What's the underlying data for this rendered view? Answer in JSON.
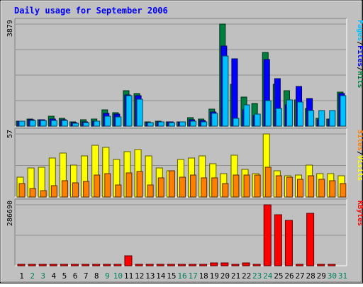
{
  "chart_data": {
    "type": "bar",
    "title": "Daily usage for September 2006",
    "days": [
      "1",
      "2",
      "3",
      "4",
      "5",
      "6",
      "7",
      "8",
      "9",
      "10",
      "11",
      "12",
      "13",
      "14",
      "15",
      "16",
      "17",
      "18",
      "19",
      "20",
      "21",
      "22",
      "23",
      "24",
      "25",
      "26",
      "27",
      "28",
      "29",
      "30",
      "31"
    ],
    "weekend_days": [
      "2",
      "3",
      "9",
      "10",
      "16",
      "17",
      "23",
      "24",
      "30",
      "31"
    ],
    "panels": [
      {
        "id": "hits",
        "ymax": 3879,
        "ymax_label": "3879",
        "legend": [
          {
            "label": "Pages",
            "color": "#00C0FF"
          },
          {
            "label": "Files",
            "color": "#0000FF"
          },
          {
            "label": "Hits",
            "color": "#008040"
          }
        ],
        "series": [
          {
            "name": "Hits",
            "color": "#008040",
            "values": [
              200,
              270,
              250,
              390,
              300,
              150,
              230,
              280,
              610,
              520,
              1360,
              1250,
              150,
              190,
              170,
              170,
              310,
              260,
              650,
              3879,
              1600,
              1110,
              850,
              2790,
              1580,
              1360,
              1000,
              680,
              300,
              280,
              1300
            ]
          },
          {
            "name": "Files",
            "color": "#0000FF",
            "values": [
              190,
              250,
              240,
              270,
              250,
              140,
              160,
              200,
              480,
              450,
              1180,
              1150,
              140,
              170,
              150,
              160,
              240,
              210,
              550,
              3050,
              2570,
              620,
              400,
              2520,
              1800,
              800,
              1500,
              1050,
              250,
              270,
              1250
            ]
          },
          {
            "name": "Pages",
            "color": "#00C0FF",
            "values": [
              180,
              210,
              220,
              210,
              210,
              120,
              130,
              180,
              390,
              350,
              1160,
              1030,
              130,
              150,
              140,
              150,
              180,
              170,
              480,
              2670,
              300,
              800,
              450,
              980,
              680,
              1000,
              920,
              600,
              600,
              600,
              1170
            ]
          }
        ]
      },
      {
        "id": "visits",
        "ymax": 57,
        "ymax_label": "57",
        "legend": [
          {
            "label": "Sites",
            "color": "#FF8000"
          },
          {
            "label": "Visits",
            "color": "#FFFF00"
          }
        ],
        "series": [
          {
            "name": "Visits",
            "color": "#FFFF00",
            "values": [
              18,
              26,
              27,
              35,
              40,
              29,
              37,
              47,
              45,
              34,
              41,
              43,
              37,
              26,
              24,
              34,
              35,
              37,
              30,
              21,
              38,
              25,
              21,
              57,
              24,
              19,
              20,
              29,
              21,
              21,
              19
            ]
          },
          {
            "name": "Sites",
            "color": "#FF8000",
            "values": [
              12,
              8,
              6,
              10,
              15,
              13,
              14,
              20,
              21,
              11,
              22,
              23,
              11,
              17,
              24,
              18,
              20,
              17,
              17,
              12,
              20,
              20,
              20,
              27,
              19,
              18,
              16,
              19,
              16,
              15,
              12
            ]
          }
        ]
      },
      {
        "id": "kbytes",
        "ymax": 286690,
        "ymax_label": "286690",
        "legend": [
          {
            "label": "KBytes",
            "color": "#FF0000"
          }
        ],
        "series": [
          {
            "name": "KBytes",
            "color": "#FF0000",
            "values": [
              2000,
              2000,
              2000,
              2000,
              2000,
              2000,
              2000,
              5000,
              8000,
              8000,
              47000,
              8000,
              2000,
              2000,
              2000,
              2000,
              2000,
              2000,
              14000,
              14000,
              8000,
              14000,
              2000,
              286690,
              240000,
              215000,
              2000,
              248000,
              8000,
              8000,
              0
            ]
          }
        ]
      }
    ]
  }
}
